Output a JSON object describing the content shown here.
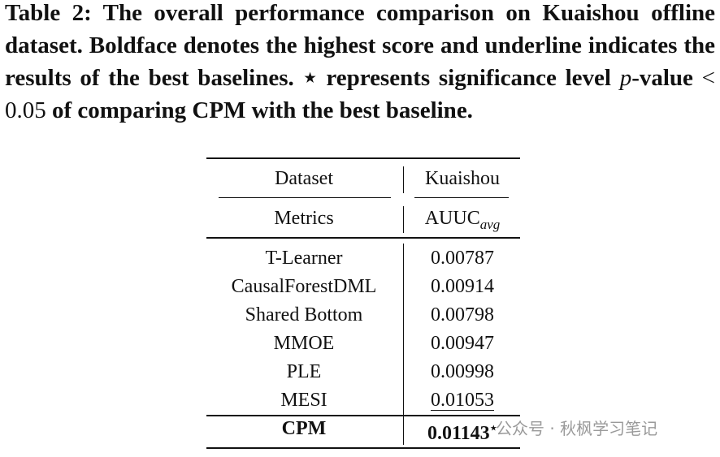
{
  "caption": {
    "lead": "Table 2: The overall performance comparison on Kuaishou offline dataset. Boldface denotes the highest score and underline indicates the results of the best baselines. ",
    "star": "⋆",
    "middle": " represents significance level ",
    "p": "p",
    "after_p": "-value ",
    "math": "< 0.05",
    "tail": " of comparing CPM with the best baseline."
  },
  "table": {
    "header": {
      "dataset_label": "Dataset",
      "dataset": "Kuaishou",
      "metrics_label": "Metrics",
      "metric": "AUUC",
      "metric_sub": "avg"
    },
    "rows": [
      [
        "T-Learner",
        "0.00787"
      ],
      [
        "CausalForestDML",
        "0.00914"
      ],
      [
        "Shared Bottom",
        "0.00798"
      ],
      [
        "MMOE",
        "0.00947"
      ],
      [
        "PLE",
        "0.00998"
      ],
      [
        "MESI",
        "0.01053"
      ],
      [
        "CPM",
        "0.01143"
      ]
    ],
    "significance_mark": "⋆"
  },
  "watermark": "公众号 · 秋枫学习笔记"
}
